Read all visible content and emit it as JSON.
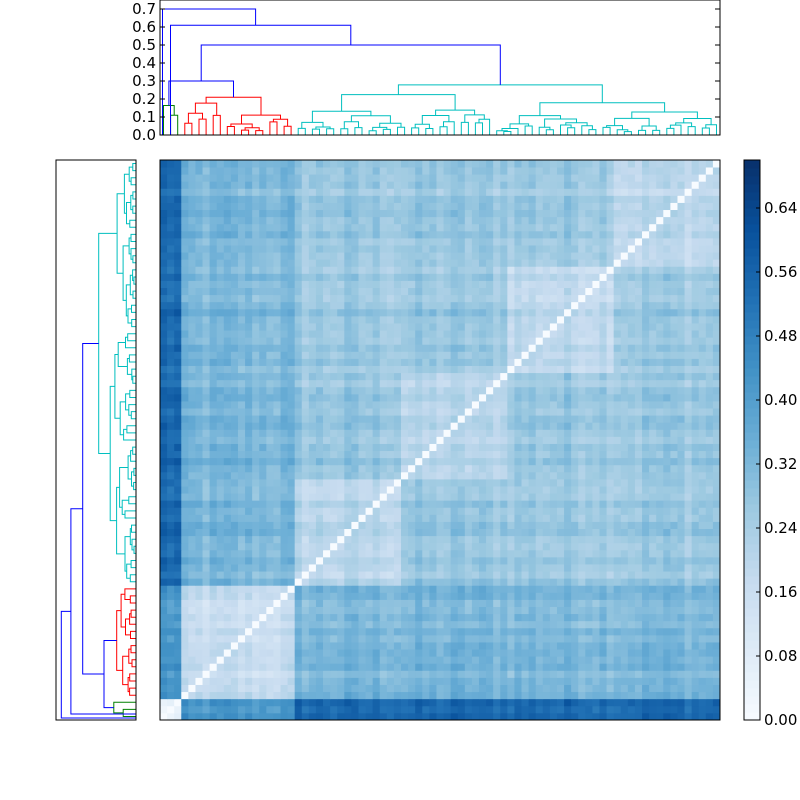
{
  "chart_data": [
    {
      "type": "dendrogram",
      "orientation": "top",
      "ylim": [
        0,
        0.75
      ],
      "yticks": [
        "0.0",
        "0.1",
        "0.2",
        "0.3",
        "0.4",
        "0.5",
        "0.6",
        "0.7"
      ],
      "ytick_values": [
        0.0,
        0.1,
        0.2,
        0.3,
        0.4,
        0.5,
        0.6,
        0.7
      ],
      "clusters": [
        {
          "color": "#008000",
          "leaves": 3,
          "height": 0.33
        },
        {
          "color": "#ff0000",
          "leaves": 16,
          "height": 0.3
        },
        {
          "color": "#00bfbf",
          "leaves": 60,
          "height": 0.5
        }
      ],
      "top_merges": [
        {
          "color": "#0000ff",
          "height": 0.3
        },
        {
          "color": "#0000ff",
          "height": 0.5
        },
        {
          "color": "#0000ff",
          "height": 0.61
        },
        {
          "color": "#0000ff",
          "height": 0.7
        }
      ]
    },
    {
      "type": "dendrogram",
      "orientation": "left",
      "clusters": [
        {
          "color": "#008000",
          "leaves": 3
        },
        {
          "color": "#ff0000",
          "leaves": 16
        },
        {
          "color": "#00bfbf",
          "leaves": 60
        }
      ],
      "link_color": "#0000ff"
    },
    {
      "type": "heatmap",
      "n": 79,
      "colormap": "Blues",
      "vmin": 0.0,
      "vmax": 0.7,
      "diagonal": 0.0,
      "cluster_sizes": [
        3,
        16,
        60
      ],
      "within_cluster_mean": [
        0.05,
        0.16,
        0.2
      ],
      "between_cluster_mean": [
        0.42,
        0.55,
        0.32
      ]
    },
    {
      "type": "colorbar",
      "vmin": 0.0,
      "vmax": 0.7,
      "ticks": [
        "0.00",
        "0.08",
        "0.16",
        "0.24",
        "0.32",
        "0.40",
        "0.48",
        "0.56",
        "0.64"
      ],
      "tick_values": [
        0.0,
        0.08,
        0.16,
        0.24,
        0.32,
        0.4,
        0.48,
        0.56,
        0.64
      ]
    }
  ]
}
